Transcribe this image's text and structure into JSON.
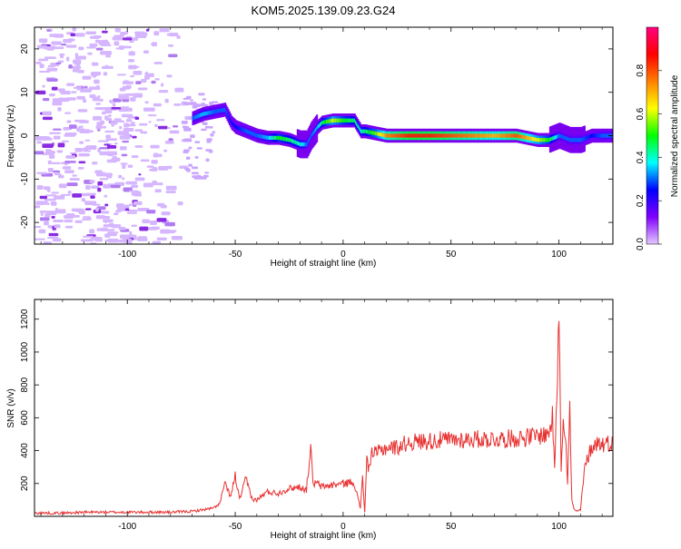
{
  "title": "KOM5.2025.139.09.23.G24",
  "chart_data": [
    {
      "type": "heatmap",
      "xlabel": "Height of straight line (km)",
      "ylabel": "Frequency (Hz)",
      "xlim": [
        -143,
        125
      ],
      "ylim": [
        -25,
        25
      ],
      "xticks": [
        -100,
        -50,
        0,
        50,
        100
      ],
      "yticks": [
        -20,
        -10,
        0,
        10,
        20
      ],
      "colorbar": {
        "label": "Normalized spectral amplitude",
        "range": [
          0,
          1
        ],
        "ticks": [
          0.0,
          0.2,
          0.4,
          0.6,
          0.8
        ],
        "tick_labels": [
          "0.0",
          "0.2",
          "0.4",
          "0.6",
          "0.8"
        ],
        "colors": [
          "#e4c8ff",
          "#8000ff",
          "#0000ff",
          "#00ffff",
          "#00ff00",
          "#ffff00",
          "#ff8000",
          "#ff0000",
          "#ff0080"
        ]
      },
      "ridge": {
        "x": [
          -70,
          -65,
          -60,
          -55,
          -52,
          -50,
          -45,
          -40,
          -35,
          -30,
          -25,
          -20,
          -17,
          -15,
          -12,
          -10,
          -5,
          0,
          5,
          8,
          10,
          15,
          20,
          30,
          40,
          50,
          60,
          70,
          80,
          90,
          95,
          100,
          105,
          110,
          115,
          120,
          125
        ],
        "y": [
          4,
          5,
          5.5,
          6,
          3,
          2,
          1,
          0,
          -0.5,
          -0.5,
          -1,
          -2,
          -2,
          0,
          2,
          3,
          3.5,
          3.5,
          3.5,
          1,
          1,
          0.5,
          0,
          0,
          0,
          0,
          0,
          0,
          0,
          -1,
          -1,
          0,
          -1,
          -1,
          0,
          0,
          0
        ],
        "amplitude": [
          0.3,
          0.35,
          0.3,
          0.3,
          0.25,
          0.25,
          0.3,
          0.3,
          0.35,
          0.5,
          0.45,
          0.4,
          0.3,
          0.3,
          0.35,
          0.45,
          0.6,
          0.5,
          0.45,
          0.4,
          0.45,
          0.55,
          0.75,
          0.85,
          0.85,
          0.8,
          0.75,
          0.7,
          0.8,
          0.6,
          0.5,
          0.3,
          0.3,
          0.3,
          0.25,
          0.3,
          0.3
        ]
      }
    },
    {
      "type": "line",
      "xlabel": "Height of straight line (km)",
      "ylabel": "SNR (v/v)",
      "xlim": [
        -143,
        125
      ],
      "ylim": [
        0,
        1320
      ],
      "xticks": [
        -100,
        -50,
        0,
        50,
        100
      ],
      "yticks": [
        200,
        400,
        600,
        800,
        1000,
        1200
      ],
      "series": [
        {
          "color": "#e83030",
          "x": [
            -143,
            -130,
            -120,
            -110,
            -100,
            -90,
            -80,
            -70,
            -60,
            -57,
            -55,
            -52,
            -50,
            -48,
            -45,
            -42,
            -40,
            -35,
            -30,
            -25,
            -20,
            -17,
            -16,
            -15,
            -14,
            -12,
            -10,
            -5,
            0,
            5,
            8,
            9,
            10,
            11,
            12,
            13,
            15,
            20,
            25,
            30,
            40,
            50,
            60,
            70,
            80,
            90,
            95,
            97,
            98,
            99,
            100,
            101,
            102,
            103,
            104,
            105,
            106,
            107,
            108,
            110,
            112,
            115,
            118,
            120,
            125
          ],
          "y": [
            20,
            20,
            25,
            25,
            25,
            25,
            25,
            30,
            50,
            80,
            200,
            120,
            250,
            100,
            230,
            100,
            100,
            150,
            140,
            170,
            180,
            160,
            300,
            420,
            200,
            200,
            180,
            190,
            200,
            210,
            50,
            250,
            20,
            350,
            280,
            390,
            380,
            420,
            420,
            450,
            460,
            465,
            470,
            470,
            475,
            490,
            500,
            600,
            300,
            700,
            1320,
            300,
            600,
            520,
            200,
            650,
            100,
            40,
            30,
            40,
            300,
            420,
            450,
            440,
            450
          ]
        }
      ]
    }
  ]
}
